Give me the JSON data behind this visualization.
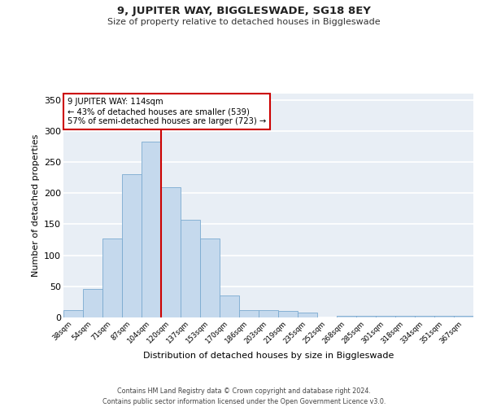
{
  "title": "9, JUPITER WAY, BIGGLESWADE, SG18 8EY",
  "subtitle": "Size of property relative to detached houses in Biggleswade",
  "xlabel": "Distribution of detached houses by size in Biggleswade",
  "ylabel": "Number of detached properties",
  "categories": [
    "38sqm",
    "54sqm",
    "71sqm",
    "87sqm",
    "104sqm",
    "120sqm",
    "137sqm",
    "153sqm",
    "170sqm",
    "186sqm",
    "203sqm",
    "219sqm",
    "235sqm",
    "252sqm",
    "268sqm",
    "285sqm",
    "301sqm",
    "318sqm",
    "334sqm",
    "351sqm",
    "367sqm"
  ],
  "values": [
    12,
    46,
    127,
    230,
    283,
    210,
    157,
    127,
    35,
    12,
    12,
    10,
    8,
    0,
    3,
    3,
    3,
    3,
    3,
    3,
    3
  ],
  "bar_color": "#c5d9ed",
  "bar_edge_color": "#7aaad0",
  "vline_color": "#cc0000",
  "annotation_text": "9 JUPITER WAY: 114sqm\n← 43% of detached houses are smaller (539)\n57% of semi-detached houses are larger (723) →",
  "annotation_box_color": "#ffffff",
  "annotation_box_edge_color": "#cc0000",
  "ylim": [
    0,
    360
  ],
  "yticks": [
    0,
    50,
    100,
    150,
    200,
    250,
    300,
    350
  ],
  "bg_color": "#e8eef5",
  "grid_color": "#ffffff",
  "footer_line1": "Contains HM Land Registry data © Crown copyright and database right 2024.",
  "footer_line2": "Contains public sector information licensed under the Open Government Licence v3.0."
}
